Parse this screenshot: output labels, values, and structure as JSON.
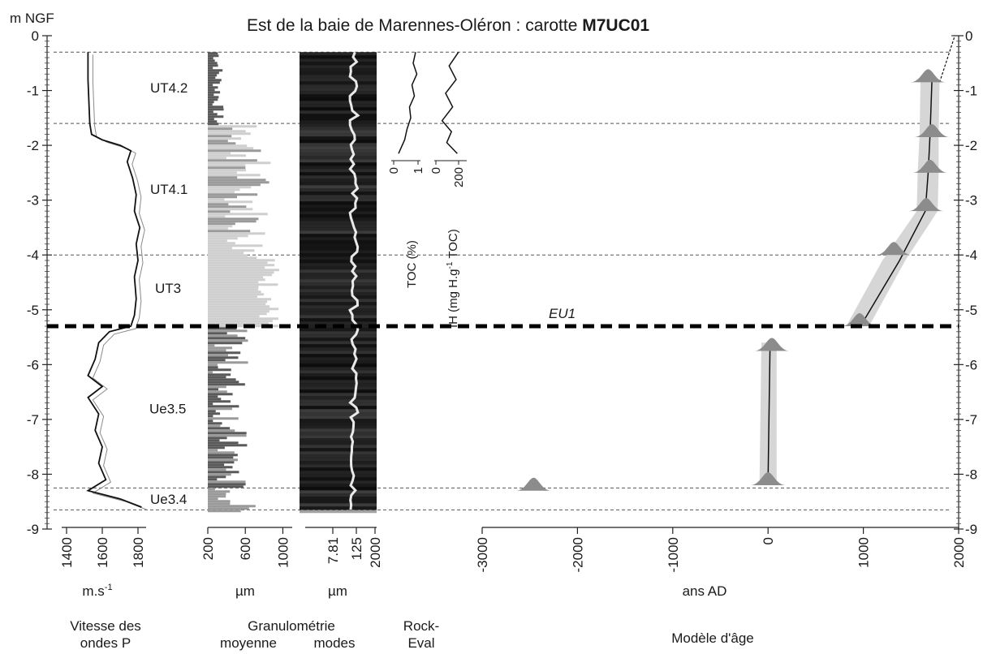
{
  "title": "Est de la baie de Marennes-Oléron : carotte",
  "title_bold": "M7UC01",
  "y_axis_label": "m NGF",
  "chart_data": {
    "type": "line",
    "title": "Est de la baie de Marennes-Oléron : carotte M7UC01",
    "ylabel": "m NGF",
    "ylim": [
      -9,
      0
    ],
    "yticks": [
      "0",
      "-1",
      "-2",
      "-3",
      "-4",
      "-5",
      "-6",
      "-7",
      "-8",
      "-9"
    ],
    "right_yticks": [
      "0",
      "-1",
      "-2",
      "-3",
      "-4",
      "-5",
      "-6",
      "-7",
      "-8",
      "-9"
    ],
    "grid": false,
    "depth_top": -0.3,
    "depth_bottom": -8.65,
    "unit_boundaries": [
      -1.6,
      -4.0,
      -8.25
    ],
    "event_boundary": {
      "label": "EU1",
      "depth": -5.3
    },
    "units": [
      {
        "label": "UT4.2",
        "depth": -0.95
      },
      {
        "label": "UT4.1",
        "depth": -2.8
      },
      {
        "label": "UT3",
        "depth": -4.6
      },
      {
        "label": "Ue3.5",
        "depth": -6.8
      },
      {
        "label": "Ue3.4",
        "depth": -8.45
      }
    ],
    "panels": [
      {
        "id": "vp",
        "unit": "m.s-1",
        "group": "Vitesse des ondes P",
        "xlim": [
          1400,
          1900
        ],
        "ticks": [
          "1400",
          "1600",
          "1800"
        ],
        "series": [
          {
            "values": [
              [
                1520,
                -0.3
              ],
              [
                1520,
                -0.8
              ],
              [
                1525,
                -1.2
              ],
              [
                1530,
                -1.6
              ],
              [
                1540,
                -1.8
              ],
              [
                1600,
                -1.9
              ],
              [
                1700,
                -2.0
              ],
              [
                1760,
                -2.1
              ],
              [
                1740,
                -2.3
              ],
              [
                1770,
                -2.6
              ],
              [
                1790,
                -2.9
              ],
              [
                1780,
                -3.2
              ],
              [
                1810,
                -3.5
              ],
              [
                1790,
                -3.8
              ],
              [
                1800,
                -4.1
              ],
              [
                1780,
                -4.4
              ],
              [
                1790,
                -4.8
              ],
              [
                1780,
                -5.1
              ],
              [
                1760,
                -5.3
              ],
              [
                1640,
                -5.4
              ],
              [
                1580,
                -5.6
              ],
              [
                1560,
                -5.9
              ],
              [
                1520,
                -6.2
              ],
              [
                1600,
                -6.4
              ],
              [
                1520,
                -6.6
              ],
              [
                1580,
                -6.9
              ],
              [
                1560,
                -7.2
              ],
              [
                1600,
                -7.5
              ],
              [
                1580,
                -7.8
              ],
              [
                1620,
                -8.1
              ],
              [
                1520,
                -8.3
              ],
              [
                1700,
                -8.45
              ],
              [
                1820,
                -8.6
              ]
            ]
          }
        ]
      },
      {
        "id": "grain-mean",
        "unit": "µm",
        "group": "Granulométrie",
        "subgroup": "moyenne",
        "xlim": [
          200,
          1100
        ],
        "ticks": [
          "200",
          "600",
          "1000"
        ]
      },
      {
        "id": "grain-modes",
        "unit": "µm",
        "subgroup": "modes",
        "scale": "log",
        "ticks": [
          "7.81",
          "125",
          "2000"
        ]
      },
      {
        "id": "toc",
        "xlabel": "TOC (%)",
        "xlim": [
          0,
          1
        ],
        "ticks": [
          "0",
          "1"
        ],
        "series": [
          {
            "values": [
              [
                0.9,
                -0.3
              ],
              [
                0.8,
                -0.5
              ],
              [
                0.95,
                -0.7
              ],
              [
                0.75,
                -0.9
              ],
              [
                0.85,
                -1.1
              ],
              [
                0.65,
                -1.3
              ],
              [
                0.7,
                -1.5
              ],
              [
                0.55,
                -1.7
              ],
              [
                0.45,
                -1.9
              ],
              [
                0.3,
                -2.05
              ],
              [
                0.2,
                -2.15
              ]
            ]
          }
        ]
      },
      {
        "id": "ih",
        "xlabel": "IH (mg H.g-1 TOC)",
        "xlim": [
          0,
          250
        ],
        "ticks": [
          "0",
          "200"
        ],
        "series": [
          {
            "values": [
              [
                200,
                -0.3
              ],
              [
                120,
                -0.55
              ],
              [
                180,
                -0.8
              ],
              [
                90,
                -1.05
              ],
              [
                150,
                -1.3
              ],
              [
                60,
                -1.55
              ],
              [
                140,
                -1.75
              ],
              [
                100,
                -1.95
              ],
              [
                190,
                -2.15
              ]
            ]
          }
        ]
      },
      {
        "id": "age",
        "xlabel": "ans AD",
        "group": "Modèle d'âge",
        "xlim": [
          -3200,
          2000
        ],
        "ticks": [
          "-3000",
          "-2000",
          "-1000",
          "0",
          "1000",
          "2000"
        ],
        "envelope": [
          {
            "depth": -0.8,
            "min": 1600,
            "max": 1800
          },
          {
            "depth": -1.8,
            "min": 1590,
            "max": 1790
          },
          {
            "depth": -2.5,
            "min": 1570,
            "max": 1790
          },
          {
            "depth": -3.2,
            "min": 1560,
            "max": 1780
          },
          {
            "depth": -4.1,
            "min": 1200,
            "max": 1440
          },
          {
            "depth": -5.3,
            "min": 820,
            "max": 1060
          }
        ],
        "envelope_lower": [
          {
            "depth": -5.6,
            "min": -70,
            "max": 90
          },
          {
            "depth": -8.2,
            "min": -90,
            "max": 90
          }
        ],
        "model_line": [
          {
            "depth": -0.8,
            "age": 1720
          },
          {
            "depth": -1.8,
            "age": 1700
          },
          {
            "depth": -2.5,
            "age": 1680
          },
          {
            "depth": -3.2,
            "age": 1650
          },
          {
            "depth": -4.1,
            "age": 1380
          },
          {
            "depth": -5.3,
            "age": 970
          }
        ],
        "model_line_lower": [
          {
            "depth": -5.75,
            "age": 20
          },
          {
            "depth": -8.1,
            "age": 0
          }
        ],
        "top_extension": [
          {
            "depth": -0.85,
            "age": 1800
          },
          {
            "depth": 0,
            "age": 1960
          }
        ],
        "dates": [
          {
            "depth": -0.85,
            "age": 1680
          },
          {
            "depth": -1.85,
            "age": 1720
          },
          {
            "depth": -2.5,
            "age": 1700
          },
          {
            "depth": -3.2,
            "age": 1660
          },
          {
            "depth": -4.0,
            "age": 1320
          },
          {
            "depth": -5.3,
            "age": 960
          },
          {
            "depth": -5.75,
            "age": 40
          },
          {
            "depth": -8.2,
            "age": 0
          },
          {
            "depth": -8.3,
            "age": -2460
          }
        ]
      }
    ]
  },
  "rock_eval_label_line1": "Rock-",
  "rock_eval_label_line2": "Eval",
  "vitesse_label_line1": "Vitesse des",
  "vitesse_label_line2": "ondes P",
  "granulo_label": "Granulométrie",
  "moyenne_label": "moyenne",
  "modes_label": "modes",
  "age_model_label": "Modèle d'âge",
  "age_unit_label": "ans AD",
  "vp_unit_label": "m.s",
  "vp_unit_sup": "-1",
  "um_label": "µm",
  "toc_axis_label": "TOC (%)",
  "ih_axis_label": "IH (mg H.g",
  "ih_axis_sup": "-1",
  "ih_axis_end": " TOC)",
  "colors": {
    "curve": "#111111",
    "curve_light": "#8a8a8a",
    "bar_dark": "#5a5a5a",
    "bar_mid": "#9a9a9a",
    "bar_light": "#cfcfcf",
    "envelope": "#d6d6d6",
    "date_fill": "#8c8c8c",
    "dashed": "#555555",
    "event_line": "#000000"
  }
}
